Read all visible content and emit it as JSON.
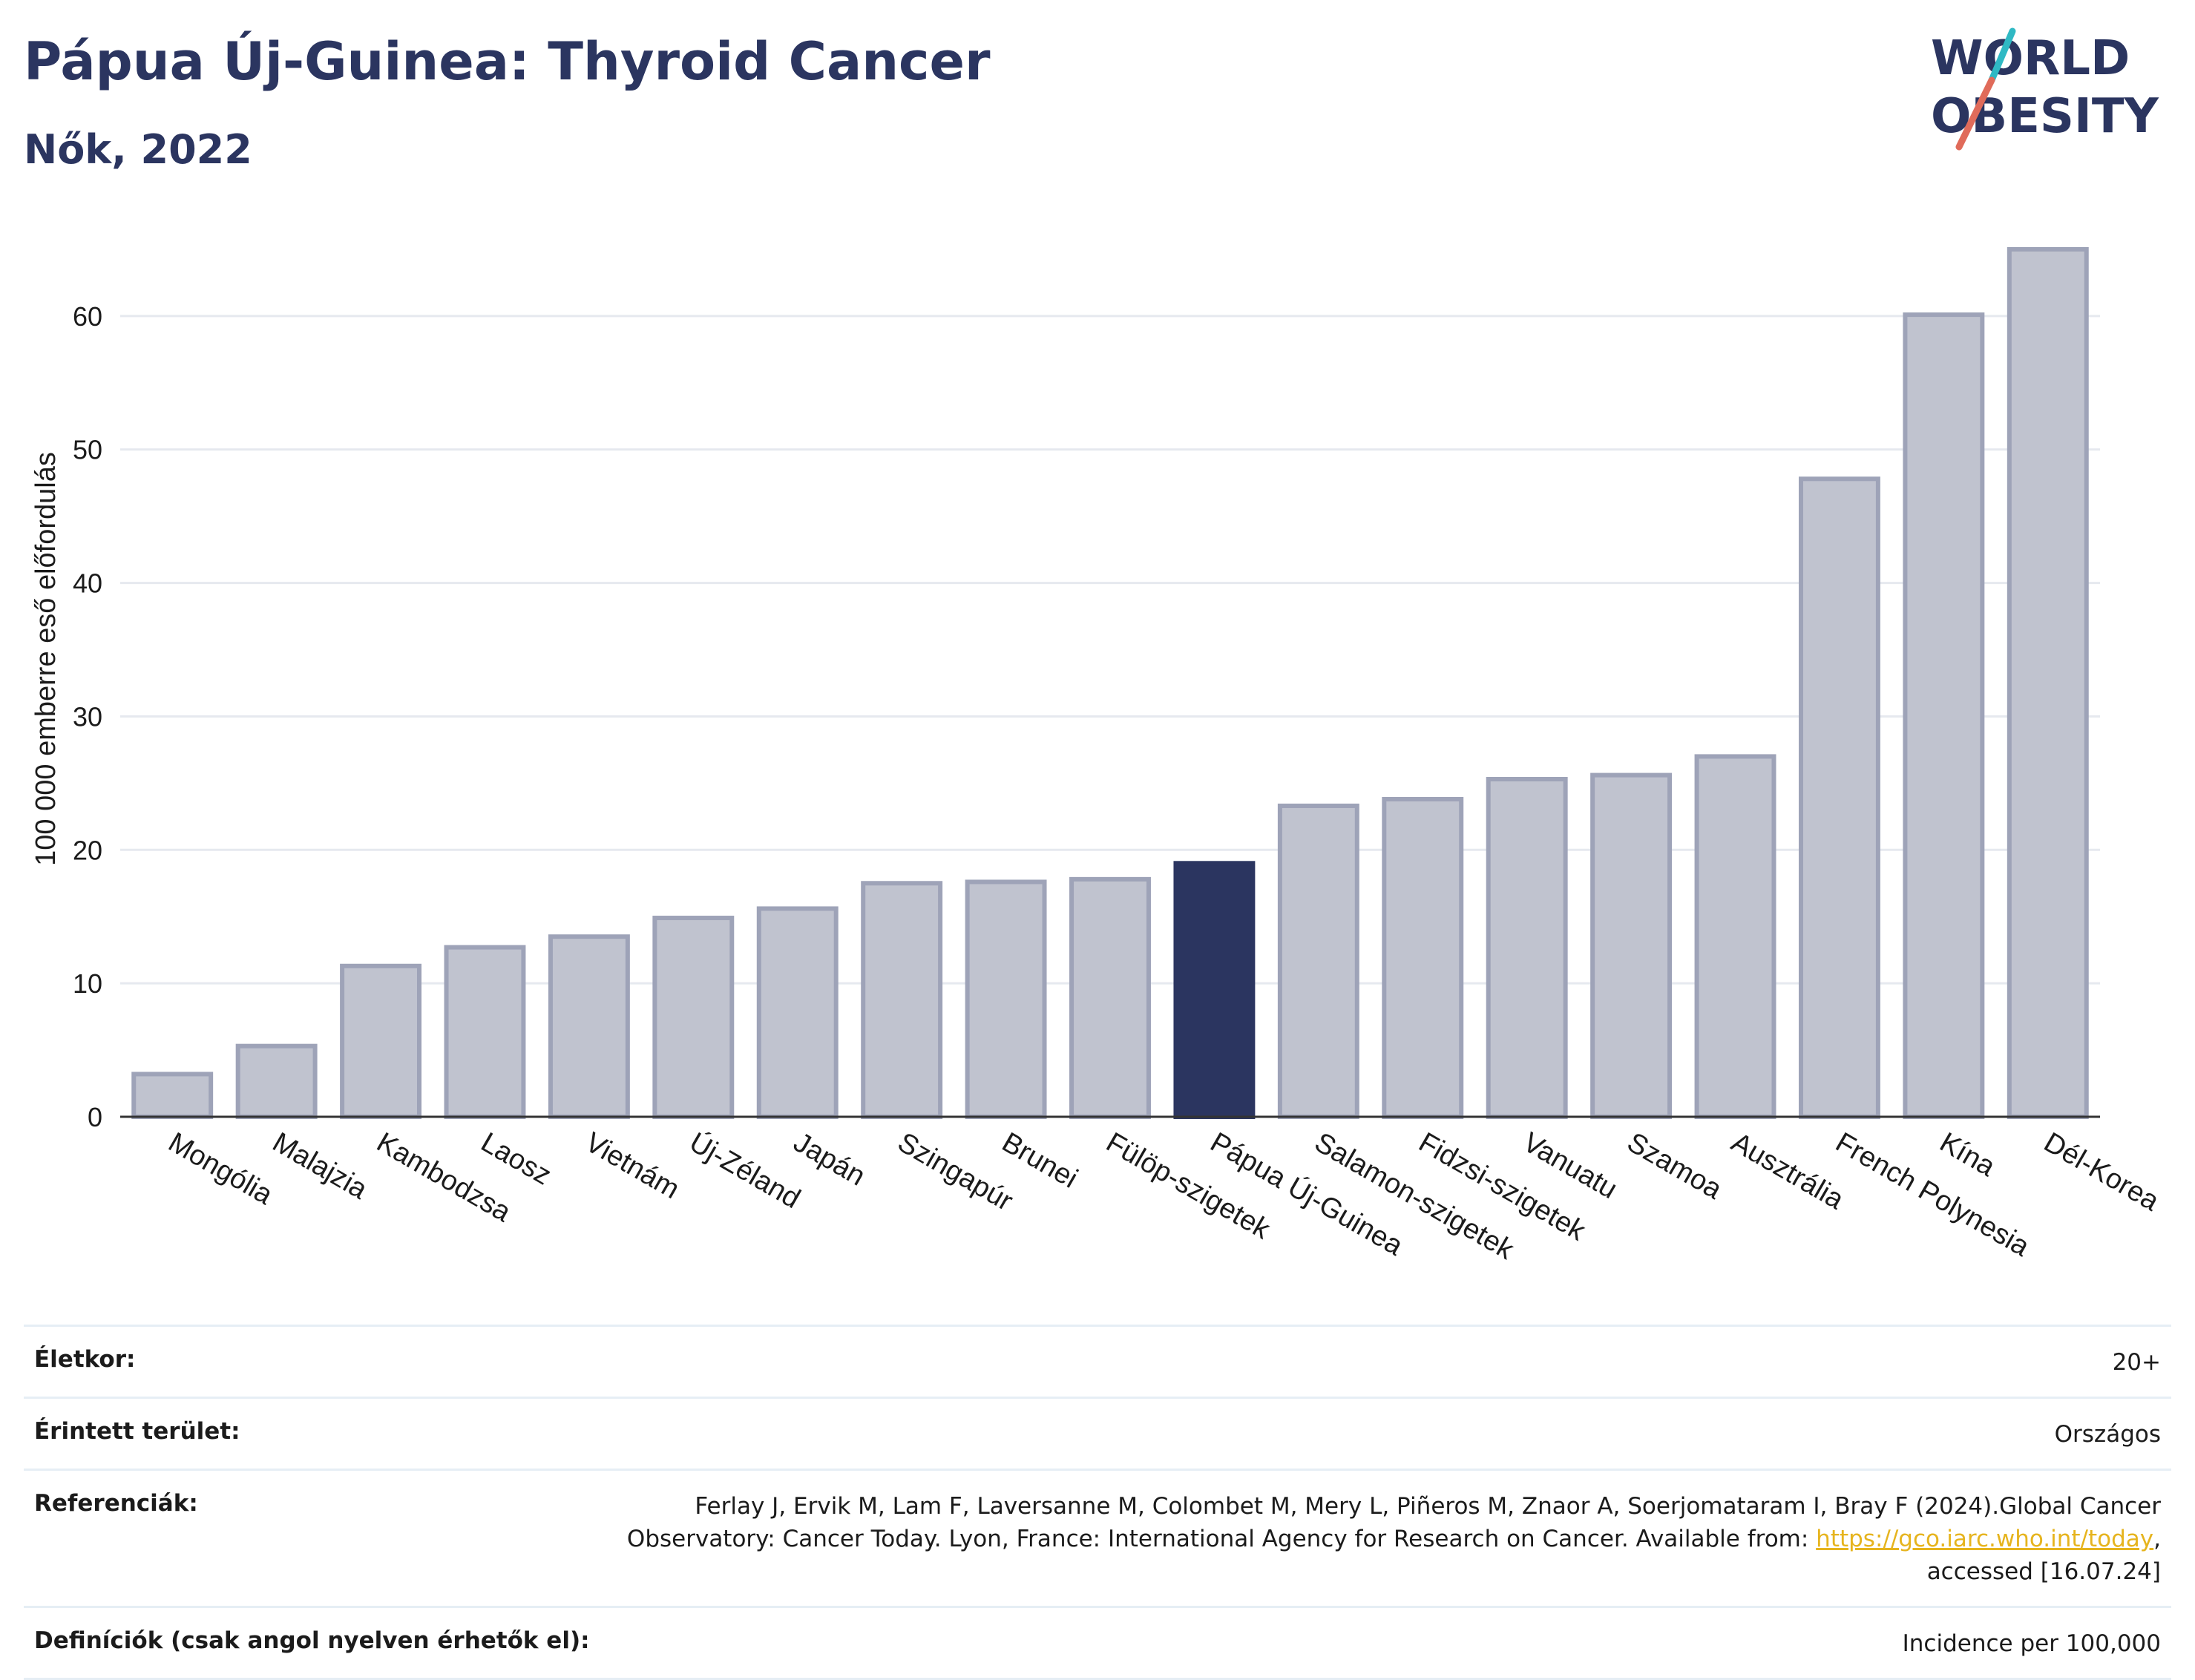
{
  "header": {
    "title": "Pápua Új-Guinea: Thyroid Cancer",
    "subtitle": "Nők, 2022"
  },
  "logo": {
    "line1": "WORLD",
    "line2": "OBESITY",
    "accent_colors": [
      "#2fb9c4",
      "#e06b5a"
    ]
  },
  "chart_data": {
    "type": "bar",
    "title": "Pápua Új-Guinea: Thyroid Cancer",
    "subtitle": "Nők, 2022",
    "ylabel": "100 000 emberre eső előfordulás",
    "xlabel": "",
    "ylim": [
      0,
      67
    ],
    "yticks": [
      0,
      10,
      20,
      30,
      40,
      50,
      60
    ],
    "grid": true,
    "highlight_category": "Pápua Új-Guinea",
    "colors": {
      "bar": "#c0c3cf",
      "bar_stroke": "#9ea3b8",
      "highlight": "#2b3560"
    },
    "categories": [
      "Mongólia",
      "Malajzia",
      "Kambodzsa",
      "Laosz",
      "Vietnám",
      "Új-Zéland",
      "Japán",
      "Szingapúr",
      "Brunei",
      "Fülöp-szigetek",
      "Pápua Új-Guinea",
      "Salamon-szigetek",
      "Fidzsi-szigetek",
      "Vanuatu",
      "Szamoa",
      "Ausztrália",
      "French Polynesia",
      "Kína",
      "Dél-Korea"
    ],
    "values": [
      3.2,
      5.3,
      11.3,
      12.7,
      13.5,
      14.9,
      15.6,
      17.5,
      17.6,
      17.8,
      19.0,
      23.3,
      23.8,
      25.3,
      25.6,
      27.0,
      47.8,
      60.1,
      65.0
    ]
  },
  "info": {
    "rows": [
      {
        "label": "Életkor:",
        "value": "20+"
      },
      {
        "label": "Érintett terület:",
        "value": "Országos"
      },
      {
        "label": "Referenciák:",
        "value_line1": "Ferlay J, Ervik M, Lam F, Laversanne M, Colombet M, Mery L, Piñeros M, Znaor A, Soerjomataram I, Bray F (2024).Global Cancer",
        "value_line2_pre": "Observatory: Cancer Today. Lyon, France: International Agency for Research on Cancer. Available from: ",
        "link": "https://gco.iarc.who.int/today",
        "value_line2_post": ",",
        "value_line3": "accessed [16.07.24]"
      },
      {
        "label": "Definíciók (csak angol nyelven érhetők el):",
        "value": "Incidence per 100,000"
      }
    ]
  }
}
